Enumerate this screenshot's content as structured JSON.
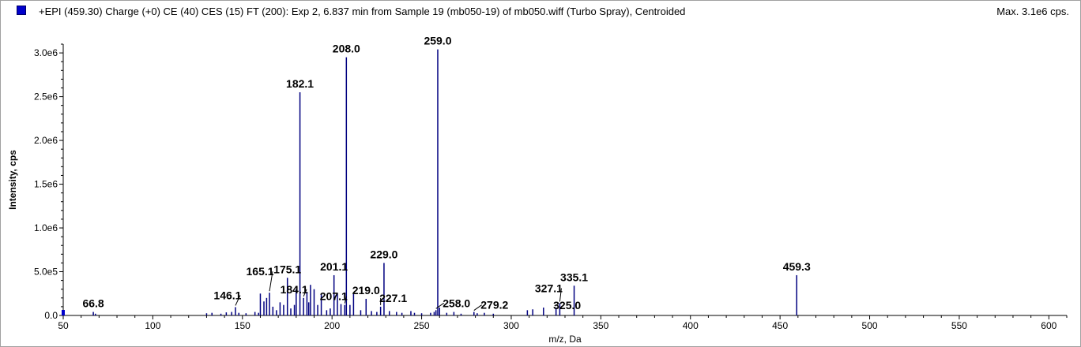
{
  "header": {
    "title": "+EPI (459.30) Charge (+0) CE (40) CES (15) FT (200): Exp 2, 6.837 min from Sample 19 (mb050-19) of mb050.wiff (Turbo Spray), Centroided",
    "max_label": "Max. 3.1e6 cps."
  },
  "colors": {
    "peak": "#000080",
    "swatch": "#0000cc",
    "axis": "#000000"
  },
  "chart_data": {
    "type": "bar",
    "xlabel": "m/z, Da",
    "ylabel": "Intensity, cps",
    "xlim": [
      50,
      610
    ],
    "ylim": [
      0,
      3100000.0
    ],
    "x_ticks": [
      50,
      100,
      150,
      200,
      250,
      300,
      350,
      400,
      450,
      500,
      550,
      600
    ],
    "y_ticks": [
      {
        "value": 0,
        "label": "0.0"
      },
      {
        "value": 500000,
        "label": "5.0e5"
      },
      {
        "value": 1000000,
        "label": "1.0e6"
      },
      {
        "value": 1500000,
        "label": "1.5e6"
      },
      {
        "value": 2000000,
        "label": "2.0e6"
      },
      {
        "value": 2500000,
        "label": "2.5e6"
      },
      {
        "value": 3000000,
        "label": "3.0e6"
      }
    ],
    "peaks": [
      [
        50.5,
        60000
      ],
      [
        66.8,
        40000
      ],
      [
        68.0,
        20000
      ],
      [
        130.0,
        25000
      ],
      [
        133.0,
        30000
      ],
      [
        138.0,
        20000
      ],
      [
        141.0,
        35000
      ],
      [
        144.0,
        40000
      ],
      [
        146.1,
        95000
      ],
      [
        148.0,
        30000
      ],
      [
        152.0,
        25000
      ],
      [
        157.0,
        40000
      ],
      [
        159.0,
        30000
      ],
      [
        160.0,
        250000
      ],
      [
        162.0,
        160000
      ],
      [
        163.5,
        200000
      ],
      [
        165.1,
        260000
      ],
      [
        167.0,
        100000
      ],
      [
        169.0,
        60000
      ],
      [
        171.0,
        150000
      ],
      [
        173.0,
        120000
      ],
      [
        175.1,
        430000
      ],
      [
        177.0,
        80000
      ],
      [
        179.0,
        120000
      ],
      [
        180.0,
        300000
      ],
      [
        182.1,
        2550000
      ],
      [
        184.1,
        200000
      ],
      [
        186.0,
        270000
      ],
      [
        187.0,
        150000
      ],
      [
        188.0,
        350000
      ],
      [
        190.0,
        300000
      ],
      [
        192.0,
        120000
      ],
      [
        194.0,
        250000
      ],
      [
        197.0,
        60000
      ],
      [
        199.0,
        80000
      ],
      [
        201.1,
        460000
      ],
      [
        203.0,
        250000
      ],
      [
        205.0,
        130000
      ],
      [
        207.1,
        120000
      ],
      [
        208.0,
        2950000
      ],
      [
        210.0,
        120000
      ],
      [
        212.0,
        250000
      ],
      [
        216.0,
        60000
      ],
      [
        219.0,
        190000
      ],
      [
        222.0,
        50000
      ],
      [
        225.0,
        40000
      ],
      [
        227.1,
        100000
      ],
      [
        229.0,
        600000
      ],
      [
        232.0,
        50000
      ],
      [
        236.0,
        40000
      ],
      [
        239.0,
        30000
      ],
      [
        244.0,
        50000
      ],
      [
        246.0,
        30000
      ],
      [
        250.0,
        25000
      ],
      [
        255.0,
        30000
      ],
      [
        257.0,
        40000
      ],
      [
        258.0,
        60000
      ],
      [
        259.0,
        3040000
      ],
      [
        260.0,
        90000
      ],
      [
        264.0,
        30000
      ],
      [
        268.0,
        40000
      ],
      [
        272.0,
        20000
      ],
      [
        279.2,
        40000
      ],
      [
        281.0,
        25000
      ],
      [
        285.0,
        30000
      ],
      [
        290.0,
        20000
      ],
      [
        309.0,
        60000
      ],
      [
        312.0,
        70000
      ],
      [
        318.0,
        90000
      ],
      [
        325.0,
        90000
      ],
      [
        327.1,
        140000
      ],
      [
        335.1,
        340000
      ],
      [
        459.3,
        460000
      ]
    ],
    "annotations": [
      {
        "text": "66.8",
        "x": 66.8,
        "y": 40000
      },
      {
        "text": "146.1",
        "x": 146.1,
        "y": 95000
      },
      {
        "text": "165.1",
        "x": 165.1,
        "y": 260000
      },
      {
        "text": "175.1",
        "x": 175.1,
        "y": 430000
      },
      {
        "text": "182.1",
        "x": 182.1,
        "y": 2550000
      },
      {
        "text": "184.1",
        "x": 184.1,
        "y": 200000
      },
      {
        "text": "201.1",
        "x": 201.1,
        "y": 460000
      },
      {
        "text": "207.1",
        "x": 207.1,
        "y": 120000
      },
      {
        "text": "208.0",
        "x": 208.0,
        "y": 2950000
      },
      {
        "text": "219.0",
        "x": 219.0,
        "y": 190000
      },
      {
        "text": "227.1",
        "x": 227.1,
        "y": 100000
      },
      {
        "text": "229.0",
        "x": 229.0,
        "y": 600000
      },
      {
        "text": "258.0",
        "x": 258.0,
        "y": 60000
      },
      {
        "text": "259.0",
        "x": 259.0,
        "y": 3040000
      },
      {
        "text": "279.2",
        "x": 279.2,
        "y": 40000
      },
      {
        "text": "325.0",
        "x": 325.0,
        "y": 90000
      },
      {
        "text": "327.1",
        "x": 327.1,
        "y": 140000
      },
      {
        "text": "335.1",
        "x": 335.1,
        "y": 340000
      },
      {
        "text": "459.3",
        "x": 459.3,
        "y": 460000
      }
    ]
  }
}
